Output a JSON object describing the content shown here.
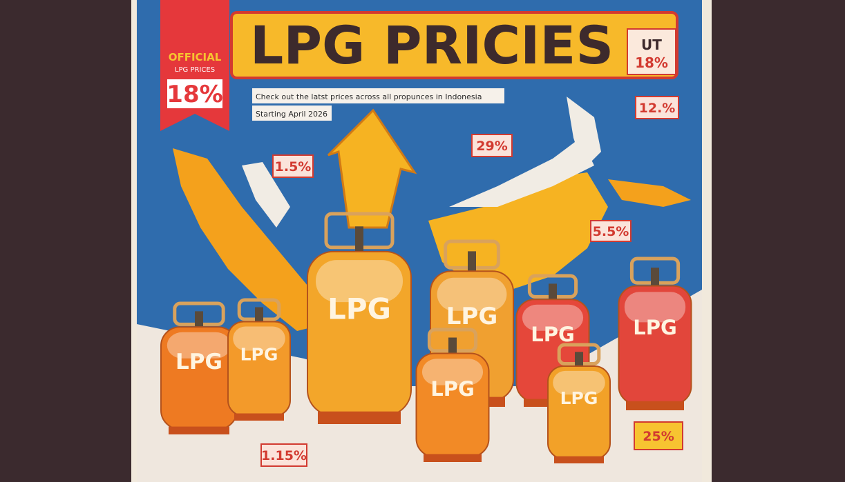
{
  "banner": {
    "title": "LPG PRICIES",
    "side_text": "UT",
    "side_value": "18%"
  },
  "ribbon": {
    "line1": "OFFICIAL",
    "line2": "LPG PRICES",
    "value": "18%"
  },
  "subtitle": {
    "line1": "Check out the latst prices across all propunces in Indonesia",
    "line2": "Starting April 2026"
  },
  "badges": [
    "12.%",
    "29%",
    "1.5%",
    "5.5%",
    "25%",
    "1.15%"
  ],
  "cylinders": [
    {
      "label": "LPG"
    },
    {
      "label": "LPG"
    },
    {
      "label": "LPG"
    },
    {
      "label": "LPG"
    },
    {
      "label": "LPG"
    },
    {
      "label": "LPG"
    },
    {
      "label": "LPG"
    },
    {
      "label": "LPG"
    }
  ]
}
